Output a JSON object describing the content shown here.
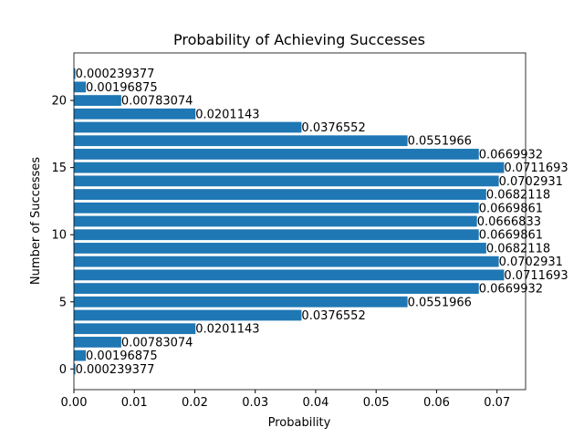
{
  "chart_data": {
    "type": "barh",
    "title": "Probability of Achieving Successes",
    "xlabel": "Probability",
    "ylabel": "Number of Successes",
    "y": [
      0,
      1,
      2,
      3,
      4,
      5,
      6,
      7,
      8,
      9,
      10,
      11,
      12,
      13,
      14,
      15,
      16,
      17,
      18,
      19,
      20,
      21,
      22
    ],
    "values": [
      0.000239377,
      0.00196875,
      0.00783074,
      0.0201143,
      0.0376552,
      0.0551966,
      0.0669932,
      0.0711693,
      0.0702931,
      0.0682118,
      0.0669861,
      0.0666833,
      0.0669861,
      0.0682118,
      0.0702931,
      0.0711693,
      0.0669932,
      0.0551966,
      0.0376552,
      0.0201143,
      0.00783074,
      0.00196875,
      0.000239377
    ],
    "color": "#1f77b4",
    "xlim": [
      0,
      0.07473
    ],
    "xticks": [
      {
        "value": 0,
        "label": "0.00"
      },
      {
        "value": 0.01,
        "label": "0.01"
      },
      {
        "value": 0.02,
        "label": "0.02"
      },
      {
        "value": 0.03,
        "label": "0.03"
      },
      {
        "value": 0.04,
        "label": "0.04"
      },
      {
        "value": 0.05,
        "label": "0.05"
      },
      {
        "value": 0.06,
        "label": "0.06"
      },
      {
        "value": 0.07,
        "label": "0.07"
      }
    ],
    "ylim": [
      -1.54,
      23.54
    ],
    "yticks": [
      0,
      5,
      10,
      15,
      20
    ]
  }
}
